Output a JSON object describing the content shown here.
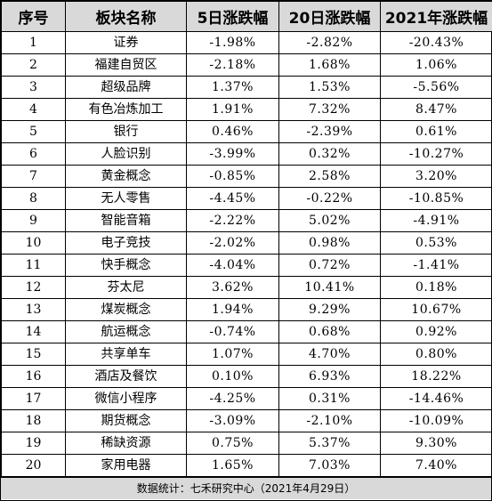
{
  "table": {
    "headers": [
      "序号",
      "板块名称",
      "5日涨跌幅",
      "20日涨跌幅",
      "2021年涨跌幅"
    ],
    "rows": [
      [
        "1",
        "证券",
        "-1.98%",
        "-2.82%",
        "-20.43%"
      ],
      [
        "2",
        "福建自贸区",
        "-2.18%",
        "1.68%",
        "1.06%"
      ],
      [
        "3",
        "超级品牌",
        "1.37%",
        "1.53%",
        "-5.56%"
      ],
      [
        "4",
        "有色冶炼加工",
        "1.91%",
        "7.32%",
        "8.47%"
      ],
      [
        "5",
        "银行",
        "0.46%",
        "-2.39%",
        "0.61%"
      ],
      [
        "6",
        "人脸识别",
        "-3.99%",
        "0.32%",
        "-10.27%"
      ],
      [
        "7",
        "黄金概念",
        "-0.85%",
        "2.58%",
        "3.20%"
      ],
      [
        "8",
        "无人零售",
        "-4.45%",
        "-0.22%",
        "-10.85%"
      ],
      [
        "9",
        "智能音箱",
        "-2.22%",
        "5.02%",
        "-4.91%"
      ],
      [
        "10",
        "电子竞技",
        "-2.02%",
        "0.98%",
        "0.53%"
      ],
      [
        "11",
        "快手概念",
        "-4.04%",
        "0.72%",
        "-1.41%"
      ],
      [
        "12",
        "芬太尼",
        "3.62%",
        "10.41%",
        "0.18%"
      ],
      [
        "13",
        "煤炭概念",
        "1.94%",
        "9.29%",
        "10.67%"
      ],
      [
        "14",
        "航运概念",
        "-0.74%",
        "0.68%",
        "0.92%"
      ],
      [
        "15",
        "共享单车",
        "1.07%",
        "4.70%",
        "0.80%"
      ],
      [
        "16",
        "酒店及餐饮",
        "0.10%",
        "6.93%",
        "18.22%"
      ],
      [
        "17",
        "微信小程序",
        "-4.25%",
        "0.31%",
        "-14.46%"
      ],
      [
        "18",
        "期货概念",
        "-3.09%",
        "-2.10%",
        "-10.09%"
      ],
      [
        "19",
        "稀缺资源",
        "0.75%",
        "5.37%",
        "9.30%"
      ],
      [
        "20",
        "家用电器",
        "1.65%",
        "7.03%",
        "7.40%"
      ]
    ]
  },
  "footer": {
    "text": "数据统计：七禾研究中心（2021年4月29日）"
  },
  "colors": {
    "header_bg": "#d9d9d9",
    "footer_bg": "#d9d9d9",
    "grid": "#000000"
  }
}
